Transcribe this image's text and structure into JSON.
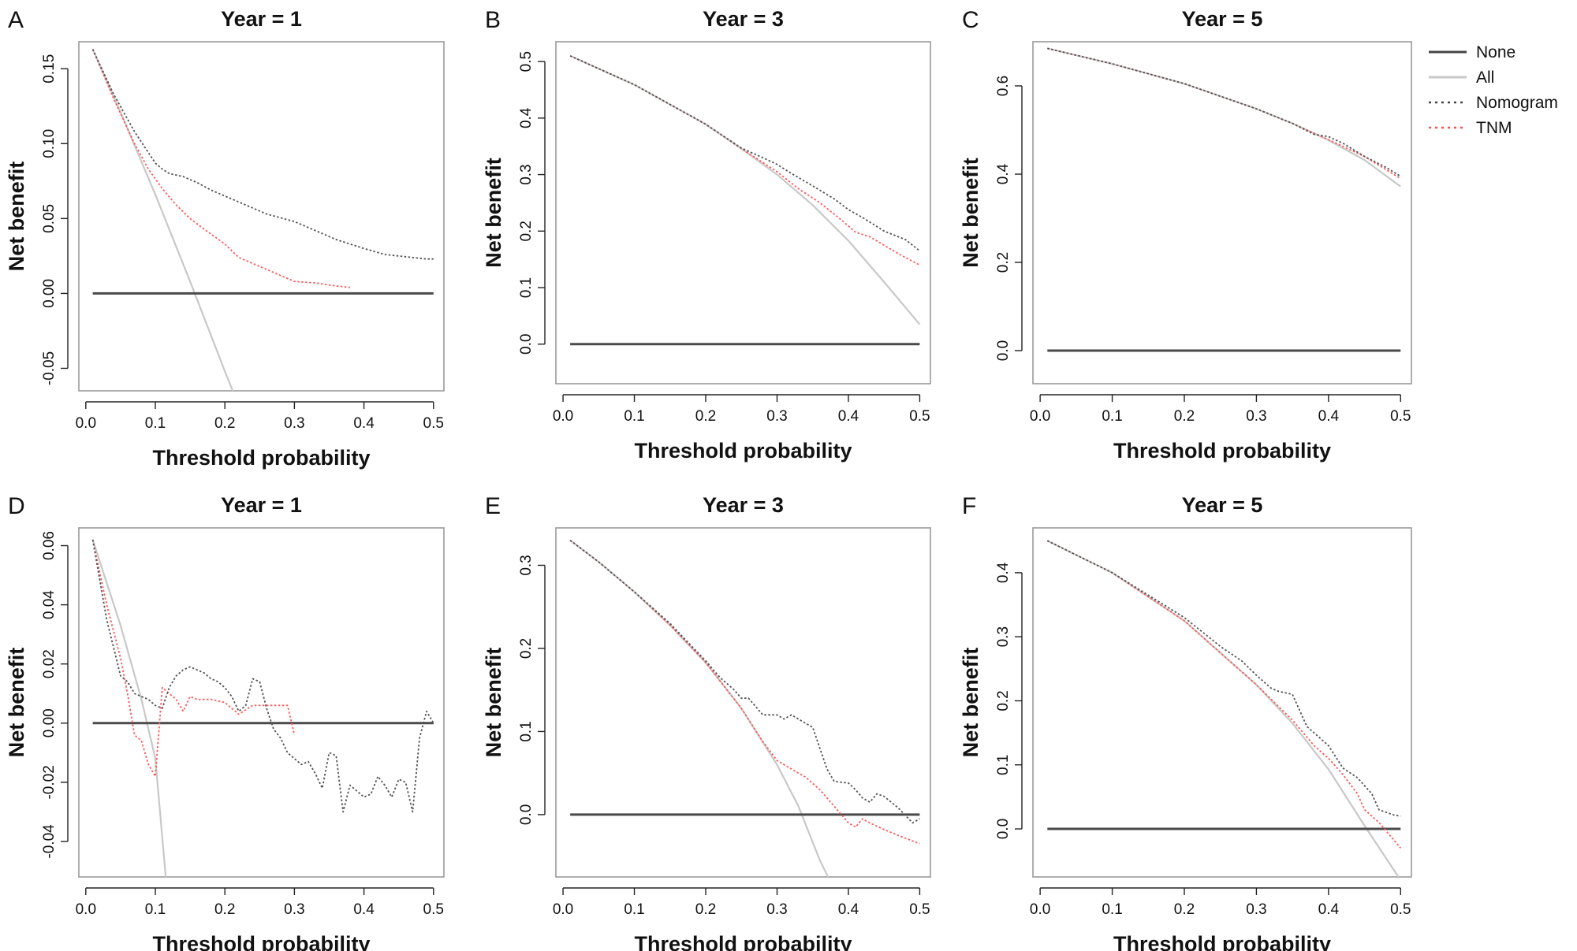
{
  "legend": [
    {
      "label": "None",
      "color": "#444444",
      "style": "solid"
    },
    {
      "label": "All",
      "color": "#c8c8c8",
      "style": "solid"
    },
    {
      "label": "Nomogram",
      "color": "#444444",
      "style": "dotted"
    },
    {
      "label": "TNM",
      "color": "#ff5050",
      "style": "dotted"
    }
  ],
  "chart_data": [
    {
      "type": "line",
      "panel": "A",
      "title": "Year = 1",
      "xlabel": "Threshold probability",
      "ylabel": "Net benefit",
      "xlim": [
        -0.01,
        0.515
      ],
      "ylim": [
        -0.065,
        0.168
      ],
      "xticks": [
        0.0,
        0.1,
        0.2,
        0.3,
        0.4,
        0.5
      ],
      "xtick_labels": [
        "0.0",
        "0.1",
        "0.2",
        "0.3",
        "0.4",
        "0.5"
      ],
      "yticks": [
        -0.05,
        0.0,
        0.05,
        0.1,
        0.15
      ],
      "ytick_labels": [
        "-0.05",
        "0.00",
        "0.05",
        "0.10",
        "0.15"
      ],
      "series": [
        {
          "name": "None",
          "x": [
            0.01,
            0.5
          ],
          "y": [
            0,
            0
          ]
        },
        {
          "name": "All",
          "x": [
            0.01,
            0.05,
            0.1,
            0.15,
            0.2,
            0.22
          ],
          "y": [
            0.163,
            0.121,
            0.066,
            0.008,
            -0.052,
            -0.075
          ]
        },
        {
          "name": "Nomogram",
          "x": [
            0.01,
            0.04,
            0.07,
            0.09,
            0.1,
            0.11,
            0.12,
            0.14,
            0.16,
            0.18,
            0.2,
            0.23,
            0.26,
            0.3,
            0.33,
            0.36,
            0.4,
            0.43,
            0.45,
            0.47,
            0.49,
            0.5
          ],
          "y": [
            0.163,
            0.133,
            0.108,
            0.094,
            0.087,
            0.083,
            0.08,
            0.078,
            0.074,
            0.069,
            0.065,
            0.059,
            0.053,
            0.048,
            0.042,
            0.036,
            0.03,
            0.026,
            0.025,
            0.024,
            0.023,
            0.023
          ]
        },
        {
          "name": "TNM",
          "x": [
            0.01,
            0.04,
            0.07,
            0.09,
            0.11,
            0.13,
            0.15,
            0.17,
            0.2,
            0.22,
            0.25,
            0.28,
            0.3,
            0.33,
            0.36,
            0.38
          ],
          "y": [
            0.163,
            0.13,
            0.1,
            0.083,
            0.07,
            0.059,
            0.05,
            0.043,
            0.033,
            0.024,
            0.018,
            0.012,
            0.008,
            0.007,
            0.005,
            0.004
          ]
        }
      ]
    },
    {
      "type": "line",
      "panel": "B",
      "title": "Year = 3",
      "xlabel": "Threshold probability",
      "ylabel": "Net benefit",
      "xlim": [
        -0.01,
        0.515
      ],
      "ylim": [
        -0.07,
        0.535
      ],
      "xticks": [
        0.0,
        0.1,
        0.2,
        0.3,
        0.4,
        0.5
      ],
      "xtick_labels": [
        "0.0",
        "0.1",
        "0.2",
        "0.3",
        "0.4",
        "0.5"
      ],
      "yticks": [
        0.0,
        0.1,
        0.2,
        0.3,
        0.4,
        0.5
      ],
      "ytick_labels": [
        "0.0",
        "0.1",
        "0.2",
        "0.3",
        "0.4",
        "0.5"
      ],
      "series": [
        {
          "name": "None",
          "x": [
            0.01,
            0.5
          ],
          "y": [
            0,
            0
          ]
        },
        {
          "name": "All",
          "x": [
            0.01,
            0.1,
            0.2,
            0.25,
            0.3,
            0.35,
            0.4,
            0.45,
            0.5
          ],
          "y": [
            0.51,
            0.459,
            0.389,
            0.346,
            0.3,
            0.246,
            0.183,
            0.11,
            0.035
          ]
        },
        {
          "name": "Nomogram",
          "x": [
            0.01,
            0.1,
            0.2,
            0.25,
            0.28,
            0.3,
            0.32,
            0.35,
            0.38,
            0.4,
            0.42,
            0.45,
            0.48,
            0.5
          ],
          "y": [
            0.51,
            0.459,
            0.389,
            0.347,
            0.33,
            0.318,
            0.302,
            0.28,
            0.257,
            0.238,
            0.224,
            0.2,
            0.185,
            0.165
          ]
        },
        {
          "name": "TNM",
          "x": [
            0.01,
            0.1,
            0.2,
            0.25,
            0.3,
            0.33,
            0.36,
            0.39,
            0.41,
            0.43,
            0.45,
            0.47,
            0.5
          ],
          "y": [
            0.51,
            0.459,
            0.389,
            0.346,
            0.305,
            0.275,
            0.25,
            0.22,
            0.198,
            0.19,
            0.175,
            0.16,
            0.14
          ]
        }
      ]
    },
    {
      "type": "line",
      "panel": "C",
      "title": "Year = 5",
      "xlabel": "Threshold probability",
      "ylabel": "Net benefit",
      "xlim": [
        -0.01,
        0.515
      ],
      "ylim": [
        -0.075,
        0.7
      ],
      "xticks": [
        0.0,
        0.1,
        0.2,
        0.3,
        0.4,
        0.5
      ],
      "xtick_labels": [
        "0.0",
        "0.1",
        "0.2",
        "0.3",
        "0.4",
        "0.5"
      ],
      "yticks": [
        0.0,
        0.2,
        0.4,
        0.6
      ],
      "ytick_labels": [
        "0.0",
        "0.2",
        "0.4",
        "0.6"
      ],
      "series": [
        {
          "name": "None",
          "x": [
            0.01,
            0.5
          ],
          "y": [
            0,
            0
          ]
        },
        {
          "name": "All",
          "x": [
            0.01,
            0.1,
            0.2,
            0.3,
            0.35,
            0.4,
            0.45,
            0.5
          ],
          "y": [
            0.685,
            0.65,
            0.605,
            0.548,
            0.515,
            0.477,
            0.432,
            0.372
          ]
        },
        {
          "name": "Nomogram",
          "x": [
            0.01,
            0.1,
            0.2,
            0.3,
            0.35,
            0.38,
            0.4,
            0.42,
            0.45,
            0.48,
            0.5
          ],
          "y": [
            0.685,
            0.65,
            0.605,
            0.548,
            0.515,
            0.49,
            0.485,
            0.47,
            0.44,
            0.415,
            0.395
          ]
        },
        {
          "name": "TNM",
          "x": [
            0.01,
            0.1,
            0.2,
            0.3,
            0.35,
            0.4,
            0.45,
            0.5
          ],
          "y": [
            0.685,
            0.65,
            0.605,
            0.548,
            0.515,
            0.478,
            0.44,
            0.39
          ]
        }
      ]
    },
    {
      "type": "line",
      "panel": "D",
      "title": "Year = 1",
      "xlabel": "Threshold probability",
      "ylabel": "Net benefit",
      "xlim": [
        -0.01,
        0.515
      ],
      "ylim": [
        -0.052,
        0.066
      ],
      "xticks": [
        0.0,
        0.1,
        0.2,
        0.3,
        0.4,
        0.5
      ],
      "xtick_labels": [
        "0.0",
        "0.1",
        "0.2",
        "0.3",
        "0.4",
        "0.5"
      ],
      "yticks": [
        -0.04,
        -0.02,
        0.0,
        0.02,
        0.04,
        0.06
      ],
      "ytick_labels": [
        "-0.04",
        "-0.02",
        "0.00",
        "0.02",
        "0.04",
        "0.06"
      ],
      "series": [
        {
          "name": "None",
          "x": [
            0.01,
            0.5
          ],
          "y": [
            0,
            0
          ]
        },
        {
          "name": "All",
          "x": [
            0.01,
            0.05,
            0.08,
            0.1,
            0.115
          ],
          "y": [
            0.062,
            0.033,
            0.008,
            -0.012,
            -0.052
          ]
        },
        {
          "name": "Nomogram",
          "x": [
            0.01,
            0.03,
            0.05,
            0.06,
            0.07,
            0.08,
            0.09,
            0.1,
            0.11,
            0.12,
            0.13,
            0.14,
            0.15,
            0.16,
            0.17,
            0.18,
            0.19,
            0.2,
            0.21,
            0.22,
            0.23,
            0.24,
            0.25,
            0.26,
            0.27,
            0.28,
            0.29,
            0.3,
            0.31,
            0.32,
            0.33,
            0.34,
            0.35,
            0.36,
            0.37,
            0.38,
            0.39,
            0.4,
            0.41,
            0.42,
            0.43,
            0.44,
            0.45,
            0.46,
            0.47,
            0.48,
            0.49,
            0.5
          ],
          "y": [
            0.062,
            0.035,
            0.016,
            0.014,
            0.01,
            0.009,
            0.008,
            0.006,
            0.005,
            0.012,
            0.016,
            0.018,
            0.019,
            0.018,
            0.017,
            0.015,
            0.014,
            0.012,
            0.009,
            0.004,
            0.006,
            0.015,
            0.014,
            0.005,
            -0.002,
            -0.005,
            -0.01,
            -0.012,
            -0.014,
            -0.013,
            -0.017,
            -0.022,
            -0.01,
            -0.011,
            -0.03,
            -0.021,
            -0.023,
            -0.025,
            -0.024,
            -0.018,
            -0.021,
            -0.025,
            -0.019,
            -0.02,
            -0.03,
            -0.005,
            0.004,
            0.0
          ]
        },
        {
          "name": "TNM",
          "x": [
            0.01,
            0.03,
            0.05,
            0.06,
            0.07,
            0.08,
            0.09,
            0.1,
            0.11,
            0.12,
            0.13,
            0.14,
            0.15,
            0.16,
            0.18,
            0.2,
            0.22,
            0.24,
            0.26,
            0.28,
            0.29,
            0.3
          ],
          "y": [
            0.062,
            0.04,
            0.022,
            0.01,
            -0.004,
            -0.006,
            -0.014,
            -0.018,
            0.012,
            0.01,
            0.008,
            0.004,
            0.009,
            0.008,
            0.008,
            0.007,
            0.003,
            0.006,
            0.006,
            0.006,
            0.006,
            -0.004
          ]
        }
      ]
    },
    {
      "type": "line",
      "panel": "E",
      "title": "Year = 3",
      "xlabel": "Threshold probability",
      "ylabel": "Net benefit",
      "xlim": [
        -0.01,
        0.515
      ],
      "ylim": [
        -0.075,
        0.345
      ],
      "xticks": [
        0.0,
        0.1,
        0.2,
        0.3,
        0.4,
        0.5
      ],
      "xtick_labels": [
        "0.0",
        "0.1",
        "0.2",
        "0.3",
        "0.4",
        "0.5"
      ],
      "yticks": [
        0.0,
        0.1,
        0.2,
        0.3
      ],
      "ytick_labels": [
        "0.0",
        "0.1",
        "0.2",
        "0.3"
      ],
      "series": [
        {
          "name": "None",
          "x": [
            0.01,
            0.5
          ],
          "y": [
            0,
            0
          ]
        },
        {
          "name": "All",
          "x": [
            0.01,
            0.05,
            0.1,
            0.15,
            0.2,
            0.25,
            0.3,
            0.33,
            0.36,
            0.38
          ],
          "y": [
            0.33,
            0.304,
            0.268,
            0.228,
            0.183,
            0.128,
            0.06,
            0.01,
            -0.055,
            -0.09
          ]
        },
        {
          "name": "Nomogram",
          "x": [
            0.01,
            0.05,
            0.1,
            0.15,
            0.2,
            0.22,
            0.24,
            0.25,
            0.26,
            0.28,
            0.3,
            0.31,
            0.32,
            0.33,
            0.34,
            0.35,
            0.37,
            0.38,
            0.4,
            0.41,
            0.42,
            0.43,
            0.44,
            0.45,
            0.47,
            0.49,
            0.5
          ],
          "y": [
            0.33,
            0.304,
            0.268,
            0.23,
            0.185,
            0.165,
            0.15,
            0.14,
            0.14,
            0.12,
            0.12,
            0.115,
            0.12,
            0.115,
            0.11,
            0.105,
            0.055,
            0.04,
            0.038,
            0.03,
            0.02,
            0.015,
            0.025,
            0.022,
            0.008,
            -0.01,
            -0.005
          ]
        },
        {
          "name": "TNM",
          "x": [
            0.01,
            0.05,
            0.1,
            0.15,
            0.2,
            0.25,
            0.28,
            0.3,
            0.32,
            0.34,
            0.36,
            0.38,
            0.4,
            0.41,
            0.42,
            0.43,
            0.45,
            0.47,
            0.5
          ],
          "y": [
            0.33,
            0.304,
            0.268,
            0.228,
            0.183,
            0.128,
            0.088,
            0.065,
            0.055,
            0.045,
            0.03,
            0.01,
            -0.01,
            -0.015,
            -0.005,
            -0.01,
            -0.018,
            -0.025,
            -0.035
          ]
        }
      ]
    },
    {
      "type": "line",
      "panel": "F",
      "title": "Year = 5",
      "xlabel": "Threshold probability",
      "ylabel": "Net benefit",
      "xlim": [
        -0.01,
        0.515
      ],
      "ylim": [
        -0.075,
        0.47
      ],
      "xticks": [
        0.0,
        0.1,
        0.2,
        0.3,
        0.4,
        0.5
      ],
      "xtick_labels": [
        "0.0",
        "0.1",
        "0.2",
        "0.3",
        "0.4",
        "0.5"
      ],
      "yticks": [
        0.0,
        0.1,
        0.2,
        0.3,
        0.4
      ],
      "ytick_labels": [
        "0.0",
        "0.1",
        "0.2",
        "0.3",
        "0.4"
      ],
      "series": [
        {
          "name": "None",
          "x": [
            0.01,
            0.5
          ],
          "y": [
            0,
            0
          ]
        },
        {
          "name": "All",
          "x": [
            0.01,
            0.1,
            0.2,
            0.3,
            0.35,
            0.4,
            0.45,
            0.5
          ],
          "y": [
            0.45,
            0.4,
            0.325,
            0.225,
            0.165,
            0.093,
            0.005,
            -0.08
          ]
        },
        {
          "name": "Nomogram",
          "x": [
            0.01,
            0.1,
            0.2,
            0.25,
            0.28,
            0.3,
            0.32,
            0.33,
            0.35,
            0.37,
            0.39,
            0.4,
            0.42,
            0.44,
            0.46,
            0.47,
            0.49,
            0.5
          ],
          "y": [
            0.45,
            0.4,
            0.33,
            0.285,
            0.262,
            0.24,
            0.22,
            0.215,
            0.21,
            0.16,
            0.14,
            0.13,
            0.095,
            0.08,
            0.055,
            0.03,
            0.022,
            0.02
          ]
        },
        {
          "name": "TNM",
          "x": [
            0.01,
            0.1,
            0.2,
            0.3,
            0.35,
            0.38,
            0.4,
            0.42,
            0.44,
            0.45,
            0.47,
            0.5
          ],
          "y": [
            0.45,
            0.4,
            0.325,
            0.225,
            0.17,
            0.13,
            0.11,
            0.085,
            0.055,
            0.03,
            0.01,
            -0.03
          ]
        }
      ]
    }
  ]
}
